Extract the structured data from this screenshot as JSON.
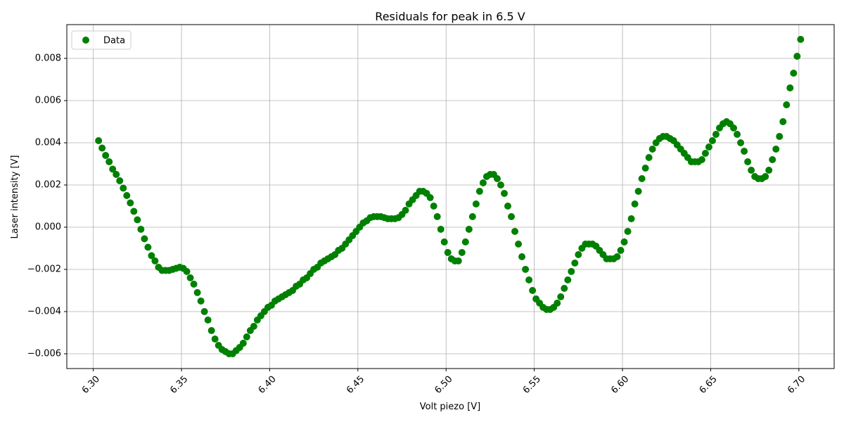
{
  "chart_data": {
    "type": "scatter",
    "title": "Residuals for peak in 6.5 V",
    "xlabel": "Volt piezo [V]",
    "ylabel": "Laser intensity [V]",
    "xlim": [
      6.285,
      6.72
    ],
    "ylim": [
      -0.0067,
      0.0096
    ],
    "x_ticks": [
      "6.30",
      "6.35",
      "6.40",
      "6.45",
      "6.50",
      "6.55",
      "6.60",
      "6.65",
      "6.70"
    ],
    "y_ticks": [
      "−0.006",
      "−0.004",
      "−0.002",
      "0.000",
      "0.002",
      "0.004",
      "0.006",
      "0.008"
    ],
    "x_tick_values": [
      6.3,
      6.35,
      6.4,
      6.45,
      6.5,
      6.55,
      6.6,
      6.65,
      6.7
    ],
    "y_tick_values": [
      -0.006,
      -0.004,
      -0.002,
      0.0,
      0.002,
      0.004,
      0.006,
      0.008
    ],
    "x_tick_rotation_deg": 45,
    "grid": true,
    "legend": {
      "position": "top-left",
      "entries": [
        "Data"
      ]
    },
    "colors": {
      "marker": "#008000",
      "grid": "#b0b0b0",
      "axis": "#000000"
    },
    "series": [
      {
        "name": "Data",
        "x_start": 6.303,
        "x_step": 0.002,
        "y": [
          0.0041,
          0.00375,
          0.0034,
          0.0031,
          0.00275,
          0.0025,
          0.0022,
          0.00185,
          0.0015,
          0.00115,
          0.00075,
          0.00035,
          -0.0001,
          -0.00055,
          -0.00095,
          -0.00135,
          -0.0016,
          -0.0019,
          -0.00205,
          -0.00205,
          -0.00205,
          -0.002,
          -0.00195,
          -0.0019,
          -0.00195,
          -0.0021,
          -0.0024,
          -0.0027,
          -0.0031,
          -0.0035,
          -0.004,
          -0.0044,
          -0.0049,
          -0.0053,
          -0.0056,
          -0.0058,
          -0.0059,
          -0.006,
          -0.006,
          -0.00585,
          -0.0057,
          -0.0055,
          -0.0052,
          -0.0049,
          -0.0047,
          -0.0044,
          -0.0042,
          -0.004,
          -0.0038,
          -0.0037,
          -0.0035,
          -0.0034,
          -0.0033,
          -0.0032,
          -0.0031,
          -0.003,
          -0.0028,
          -0.0027,
          -0.0025,
          -0.0024,
          -0.0022,
          -0.002,
          -0.0019,
          -0.0017,
          -0.0016,
          -0.0015,
          -0.0014,
          -0.0013,
          -0.0011,
          -0.001,
          -0.0008,
          -0.0006,
          -0.0004,
          -0.0002,
          0.0,
          0.0002,
          0.0003,
          0.00045,
          0.0005,
          0.0005,
          0.0005,
          0.00045,
          0.0004,
          0.0004,
          0.0004,
          0.00045,
          0.0006,
          0.0008,
          0.0011,
          0.0013,
          0.0015,
          0.0017,
          0.0017,
          0.0016,
          0.0014,
          0.001,
          0.0005,
          -0.0001,
          -0.0007,
          -0.0012,
          -0.0015,
          -0.0016,
          -0.0016,
          -0.0012,
          -0.0007,
          -0.0001,
          0.0005,
          0.0011,
          0.0017,
          0.0021,
          0.0024,
          0.0025,
          0.0025,
          0.0023,
          0.002,
          0.0016,
          0.001,
          0.0005,
          -0.0002,
          -0.0008,
          -0.0014,
          -0.002,
          -0.0025,
          -0.003,
          -0.0034,
          -0.0036,
          -0.0038,
          -0.0039,
          -0.0039,
          -0.0038,
          -0.0036,
          -0.0033,
          -0.0029,
          -0.0025,
          -0.0021,
          -0.0017,
          -0.0013,
          -0.001,
          -0.0008,
          -0.0008,
          -0.0008,
          -0.0009,
          -0.0011,
          -0.0013,
          -0.0015,
          -0.0015,
          -0.0015,
          -0.0014,
          -0.0011,
          -0.0007,
          -0.0002,
          0.0004,
          0.0011,
          0.0017,
          0.0023,
          0.0028,
          0.0033,
          0.0037,
          0.004,
          0.0042,
          0.0043,
          0.0043,
          0.0042,
          0.0041,
          0.0039,
          0.0037,
          0.0035,
          0.0033,
          0.0031,
          0.0031,
          0.0031,
          0.0032,
          0.0035,
          0.0038,
          0.0041,
          0.0044,
          0.0047,
          0.0049,
          0.005,
          0.0049,
          0.0047,
          0.0044,
          0.004,
          0.0036,
          0.0031,
          0.0027,
          0.0024,
          0.0023,
          0.0023,
          0.0024,
          0.0027,
          0.0032,
          0.0037,
          0.0043,
          0.005,
          0.0058,
          0.0066,
          0.0073,
          0.0081,
          0.0089
        ]
      }
    ]
  }
}
